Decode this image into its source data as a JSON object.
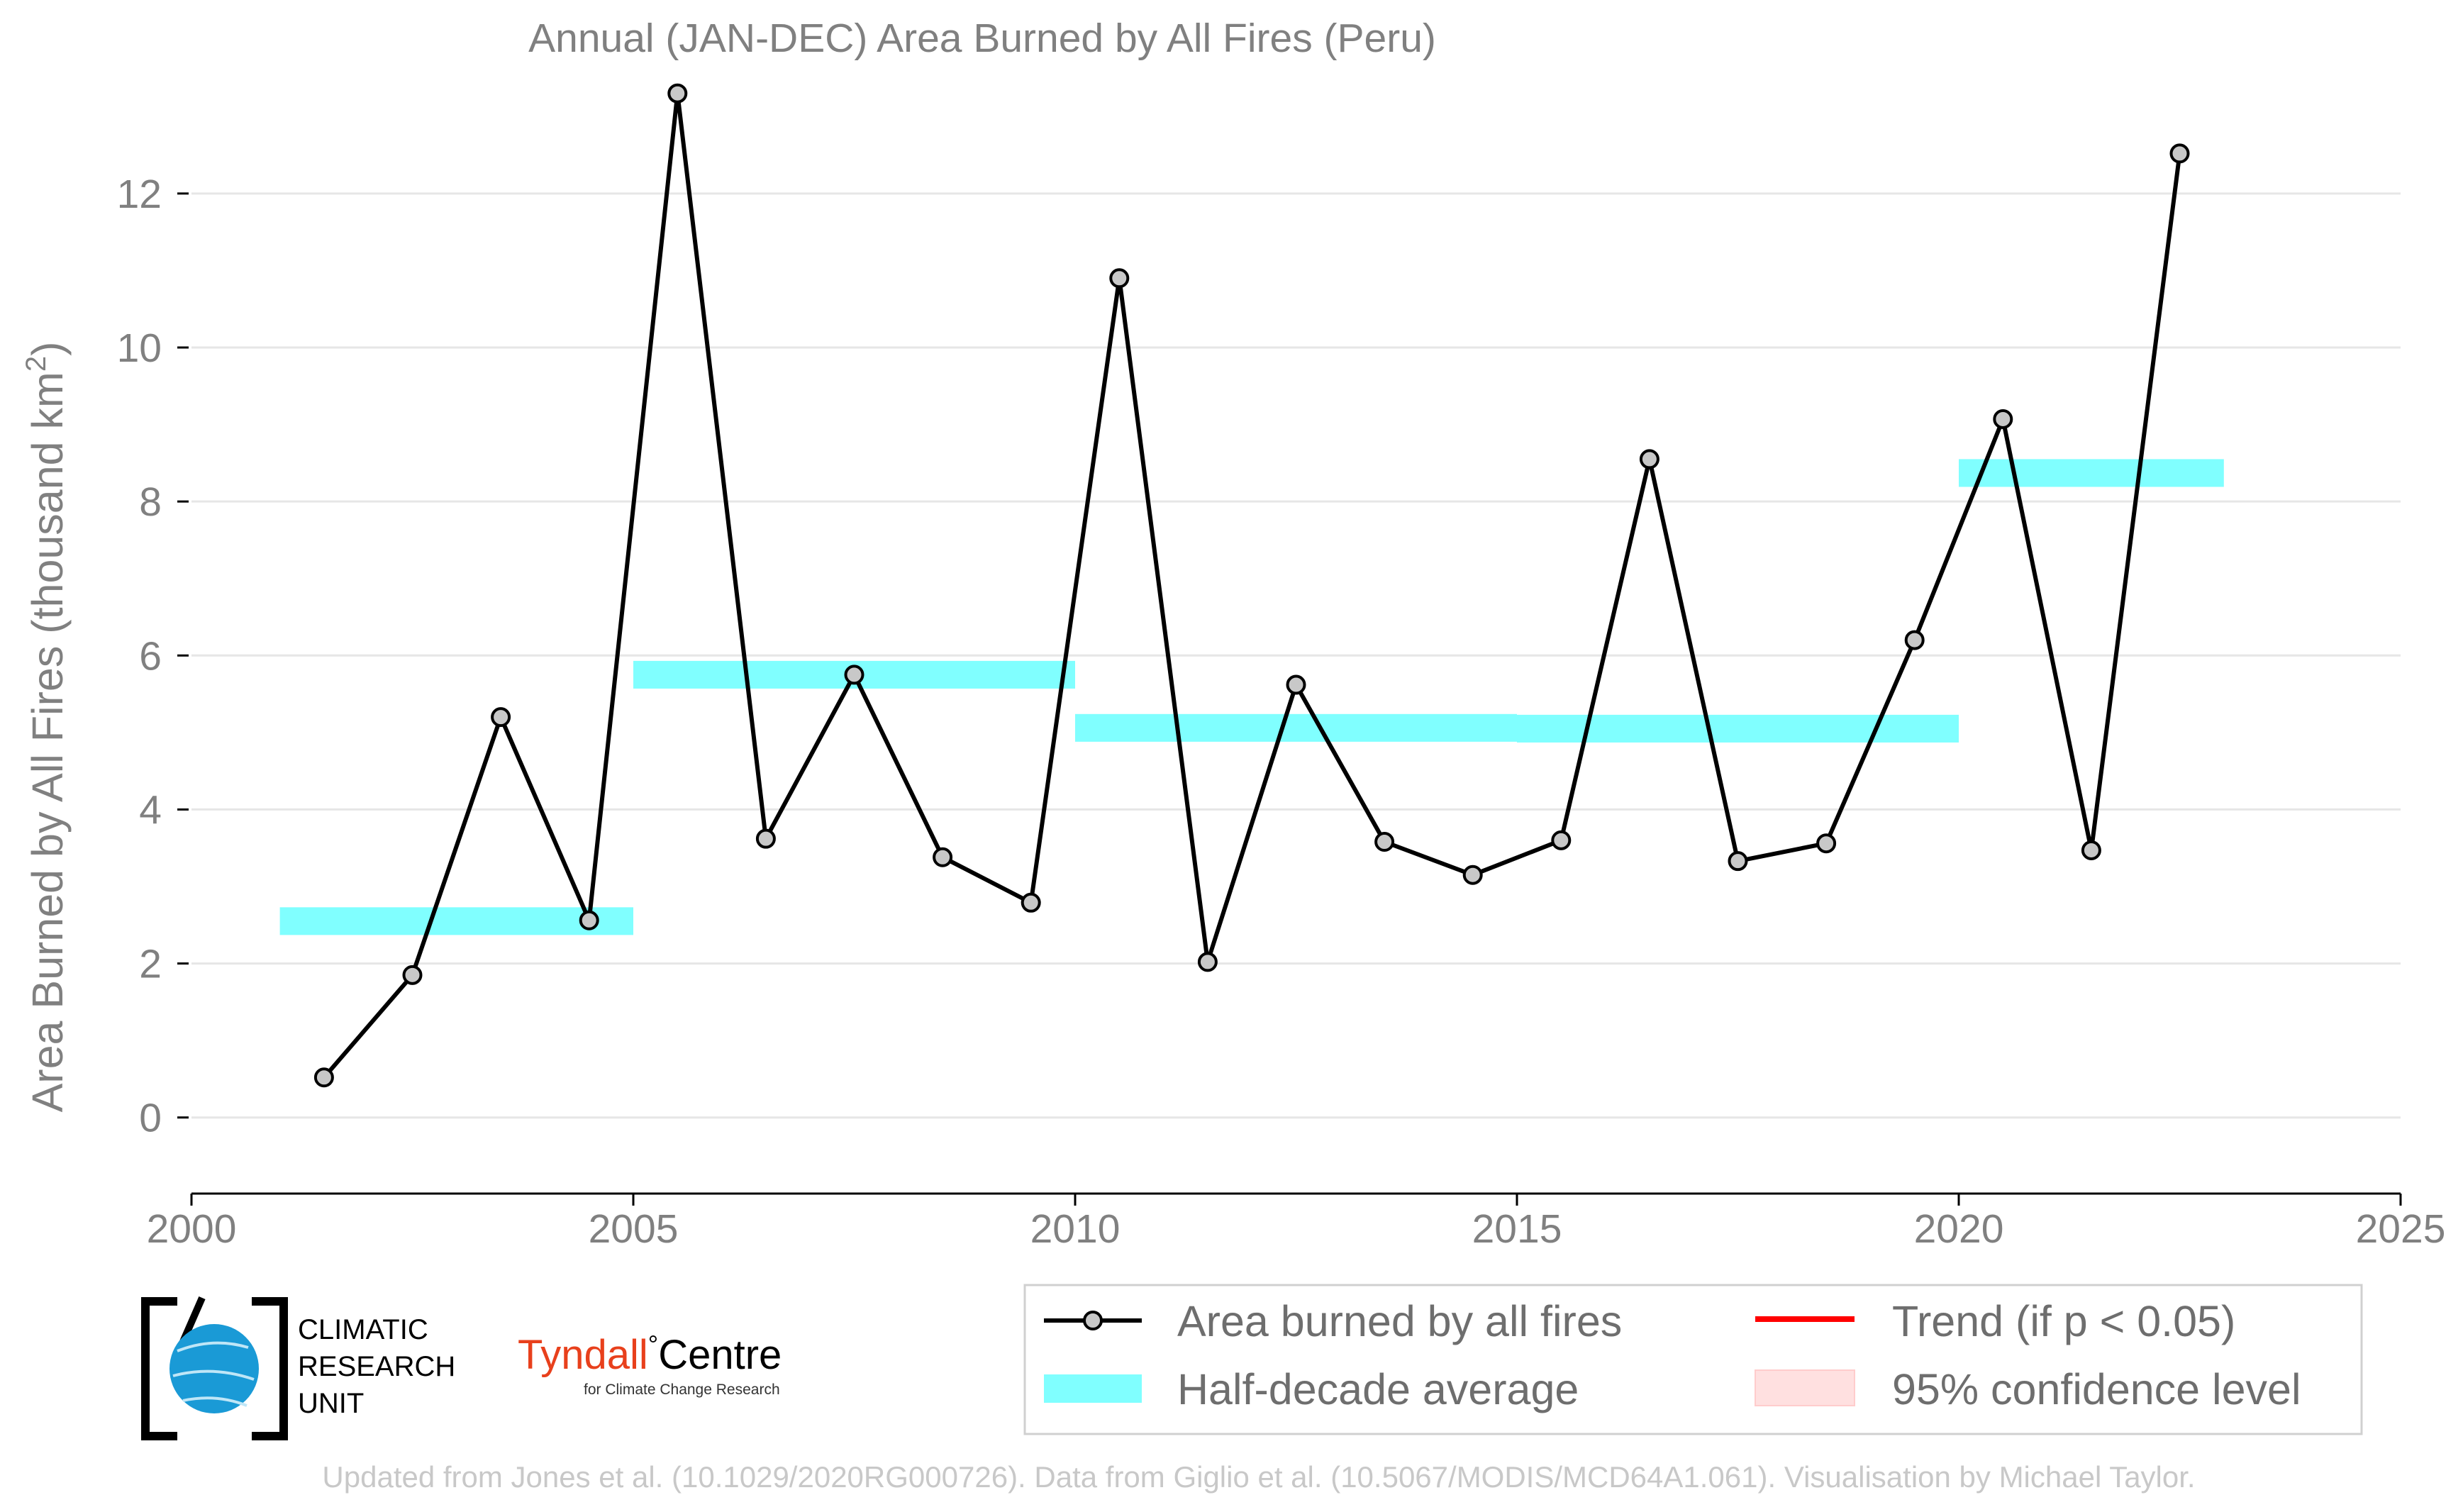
{
  "chart_data": {
    "type": "line",
    "title": "Annual (JAN-DEC) Area Burned by All Fires (Peru)",
    "ylabel_prefix": "Area Burned by All Fires (thousand km",
    "ylabel_sup": "2",
    "ylabel_suffix": ")",
    "xlim": [
      2000,
      2025
    ],
    "ylim": [
      -0.5,
      13.5
    ],
    "xticks": [
      2000,
      2005,
      2010,
      2015,
      2020,
      2025
    ],
    "yticks": [
      0,
      2,
      4,
      6,
      8,
      10,
      12
    ],
    "grid": "horizontal",
    "series": [
      {
        "name": "Area burned by all fires",
        "color": "#000000",
        "marker_fill": "#c8c8c8",
        "x": [
          2001.5,
          2002.5,
          2003.5,
          2004.5,
          2005.5,
          2006.5,
          2007.5,
          2008.5,
          2009.5,
          2010.5,
          2011.5,
          2012.5,
          2013.5,
          2014.5,
          2015.5,
          2016.5,
          2017.5,
          2018.5,
          2019.5,
          2020.5,
          2021.5,
          2022.5
        ],
        "y": [
          0.52,
          1.85,
          5.2,
          2.56,
          13.3,
          3.62,
          5.75,
          3.38,
          2.79,
          10.9,
          2.02,
          5.62,
          3.58,
          3.15,
          3.6,
          8.55,
          3.33,
          3.56,
          6.2,
          9.07,
          3.47,
          12.52
        ]
      }
    ],
    "half_decade_average": {
      "name": "Half-decade average",
      "color": "#80ffff",
      "segments": [
        {
          "x0": 2001,
          "x1": 2005,
          "y": 2.55
        },
        {
          "x0": 2005,
          "x1": 2010,
          "y": 5.75
        },
        {
          "x0": 2010,
          "x1": 2015,
          "y": 5.06
        },
        {
          "x0": 2015,
          "x1": 2020,
          "y": 5.05
        },
        {
          "x0": 2020,
          "x1": 2023,
          "y": 8.37
        }
      ]
    },
    "legend": {
      "placement": "bottom",
      "entries": [
        {
          "label": "Area burned by all fires",
          "kind": "line-marker",
          "color": "#000000"
        },
        {
          "label": "Trend (if p < 0.05)",
          "kind": "line",
          "color": "#ff0000"
        },
        {
          "label": "Half-decade average",
          "kind": "band",
          "color": "#80ffff"
        },
        {
          "label": "95% confidence level",
          "kind": "patch",
          "color": "#ffe0e0"
        }
      ]
    }
  },
  "logos": {
    "cru_line1": "CLIMATIC",
    "cru_line2": "RESEARCH",
    "cru_line3": "UNIT",
    "tyndall_name": "Tyndall",
    "tyndall_degree": "°",
    "tyndall_centre": "Centre",
    "tyndall_sub": "for Climate Change Research"
  },
  "footer": "Updated from Jones et al. (10.1029/2020RG000726). Data from Giglio et al. (10.5067/MODIS/MCD64A1.061). Visualisation by Michael Taylor."
}
